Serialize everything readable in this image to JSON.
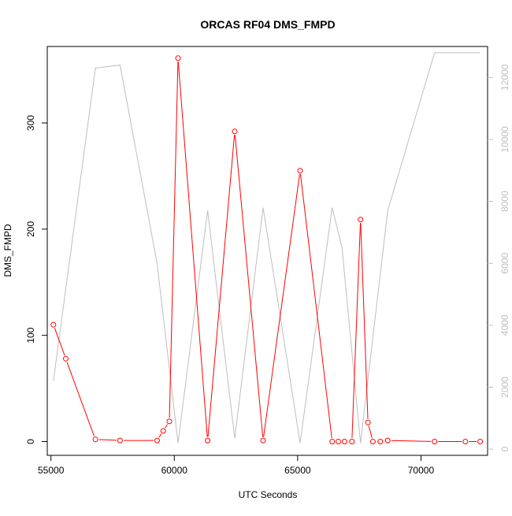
{
  "chart_data": {
    "type": "line",
    "title": "ORCAS RF04 DMS_FMPD",
    "xlabel": "UTC Seconds",
    "ylabel": "DMS_FMPD",
    "y2label": "",
    "xlim": [
      54850,
      72700
    ],
    "ylim": [
      -13,
      372
    ],
    "y2lim": [
      -200,
      13000
    ],
    "x_ticks": [
      55000,
      60000,
      65000,
      70000
    ],
    "x_tick_labels": [
      "55000",
      "60000",
      "65000",
      "70000"
    ],
    "y_ticks": [
      0,
      100,
      200,
      300
    ],
    "y_tick_labels": [
      "0",
      "100",
      "200",
      "300"
    ],
    "y2_ticks": [
      0,
      2000,
      4000,
      6000,
      8000,
      10000,
      12000
    ],
    "y2_tick_labels": [
      "0",
      "2000",
      "4000",
      "6000",
      "8000",
      "10000",
      "12000"
    ],
    "grid": false,
    "colors": {
      "primary": "#ff0000",
      "secondary": "#bebebe",
      "axis": "#000000"
    },
    "series": [
      {
        "axis": "left",
        "style": "line-with-open-circles",
        "color": "#ff0000",
        "x": [
          55100,
          55600,
          56800,
          57800,
          59300,
          59550,
          59800,
          60150,
          61350,
          62450,
          63600,
          65100,
          66400,
          66650,
          66900,
          67200,
          67550,
          67850,
          68050,
          68350,
          68650,
          70550,
          71800,
          72400
        ],
        "y": [
          110,
          78,
          2,
          1,
          1,
          10,
          19,
          361,
          1,
          292,
          1,
          255,
          0,
          0,
          0,
          0,
          209,
          18,
          0,
          0,
          1,
          0,
          0,
          0
        ]
      },
      {
        "axis": "right",
        "style": "line",
        "color": "#bebebe",
        "x": [
          55100,
          56800,
          57800,
          59300,
          60150,
          61350,
          62450,
          63600,
          65100,
          66400,
          66800,
          67550,
          68650,
          70550,
          72400
        ],
        "y": [
          2200,
          12300,
          12400,
          6000,
          200,
          7700,
          350,
          7800,
          200,
          7800,
          6500,
          200,
          7700,
          12800,
          12800
        ]
      }
    ]
  }
}
